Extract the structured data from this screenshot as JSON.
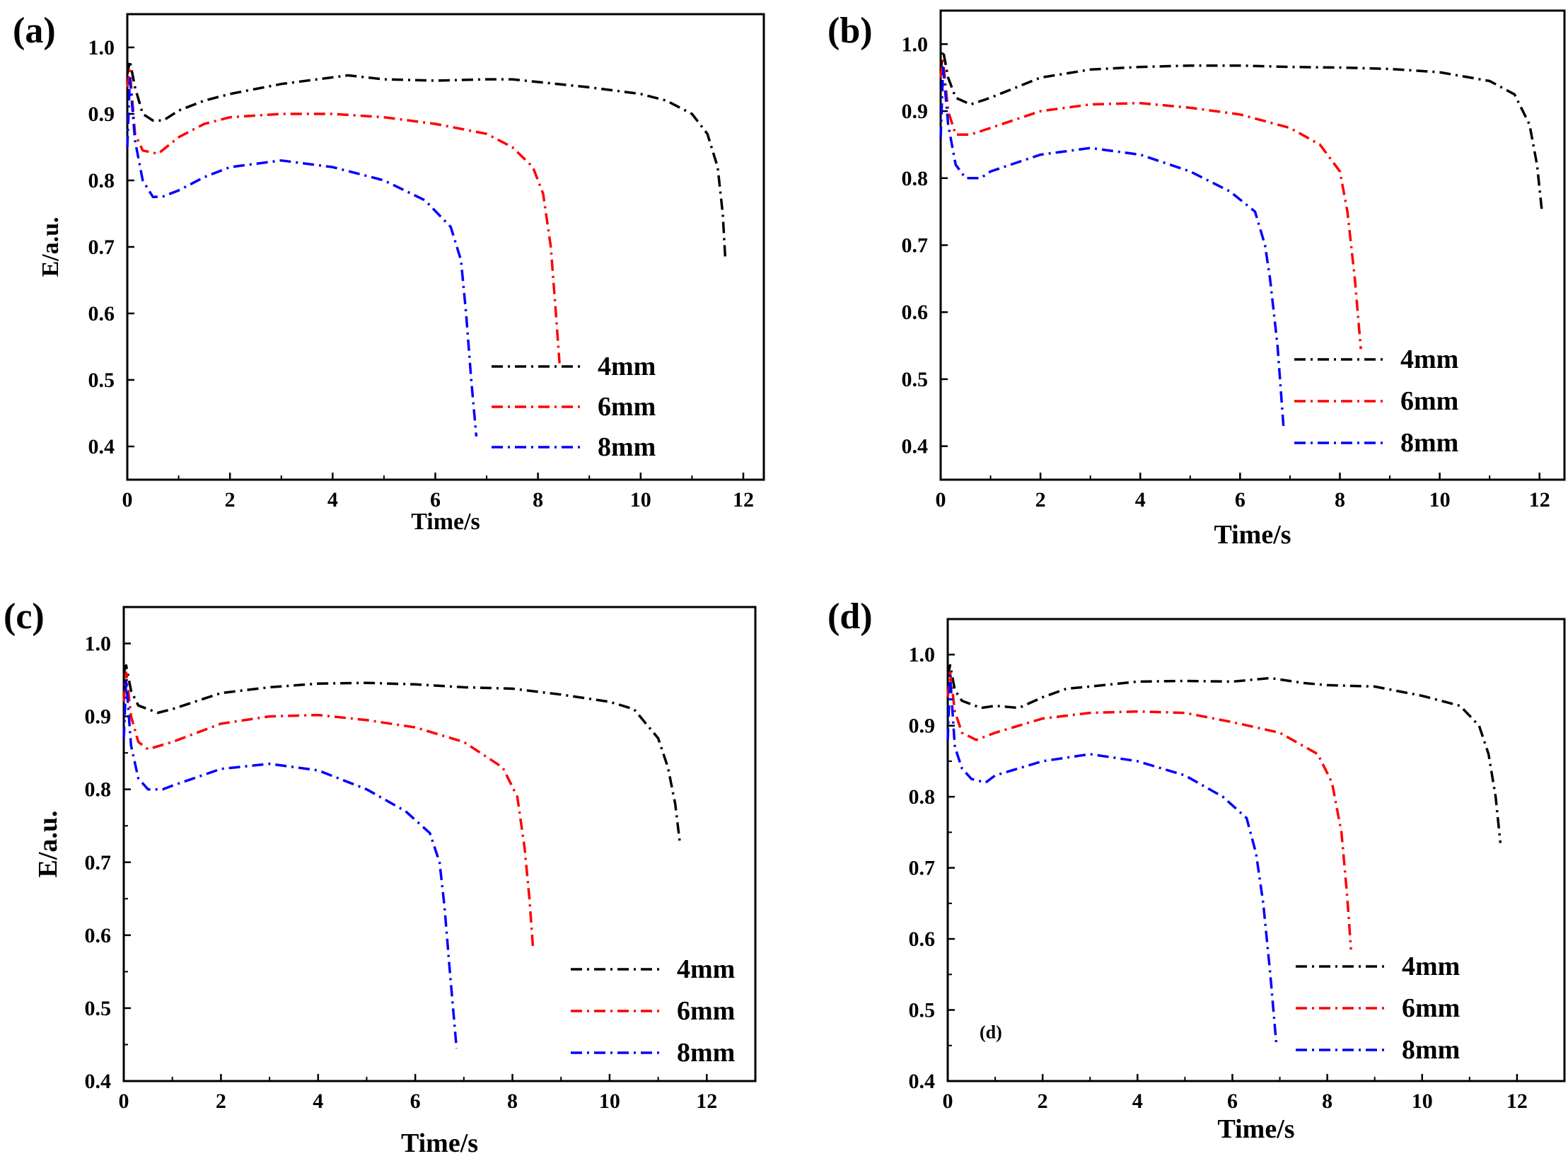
{
  "chart_data": [
    {
      "type": "line",
      "panel_label": "(a)",
      "xlabel": "Time/s",
      "ylabel": "E/a.u.",
      "xlim": [
        0,
        12.4
      ],
      "ylim": [
        0.35,
        1.05
      ],
      "x_ticks": [
        0,
        2,
        4,
        6,
        8,
        10,
        12
      ],
      "y_ticks": [
        0.4,
        0.5,
        0.6,
        0.7,
        0.8,
        0.9,
        1.0
      ],
      "x_tick_labels": [
        "0",
        "2",
        "4",
        "6",
        "8",
        "10",
        "12"
      ],
      "y_tick_labels": [
        "0.4",
        "0.5",
        "0.6",
        "0.7",
        "0.8",
        "0.9",
        "1.0"
      ],
      "legend_position": "lower-right",
      "series": [
        {
          "name": "4mm",
          "color": "#000000",
          "x": [
            0.0,
            0.05,
            0.15,
            0.3,
            0.5,
            0.7,
            1.0,
            1.5,
            2.0,
            3.0,
            4.0,
            4.3,
            5.0,
            6.0,
            7.0,
            7.5,
            8.0,
            9.0,
            10.0,
            10.5,
            11.0,
            11.3,
            11.5,
            11.6,
            11.65
          ],
          "y": [
            0.96,
            0.98,
            0.94,
            0.9,
            0.89,
            0.89,
            0.905,
            0.92,
            0.93,
            0.945,
            0.955,
            0.958,
            0.952,
            0.95,
            0.952,
            0.952,
            0.948,
            0.94,
            0.93,
            0.92,
            0.9,
            0.87,
            0.82,
            0.75,
            0.68
          ]
        },
        {
          "name": "6mm",
          "color": "#ff0000",
          "x": [
            0.0,
            0.05,
            0.15,
            0.3,
            0.6,
            1.0,
            1.5,
            2.0,
            3.0,
            4.0,
            5.0,
            6.0,
            7.0,
            7.5,
            7.9,
            8.1,
            8.25,
            8.35,
            8.42
          ],
          "y": [
            0.94,
            0.965,
            0.87,
            0.845,
            0.84,
            0.865,
            0.885,
            0.895,
            0.9,
            0.9,
            0.895,
            0.885,
            0.87,
            0.85,
            0.82,
            0.78,
            0.7,
            0.6,
            0.525
          ]
        },
        {
          "name": "8mm",
          "color": "#0000ff",
          "x": [
            0.0,
            0.05,
            0.15,
            0.3,
            0.5,
            0.7,
            1.0,
            1.5,
            2.0,
            3.0,
            4.0,
            5.0,
            5.8,
            6.3,
            6.5,
            6.6,
            6.7,
            6.8
          ],
          "y": [
            0.85,
            0.955,
            0.86,
            0.8,
            0.775,
            0.776,
            0.785,
            0.805,
            0.82,
            0.83,
            0.82,
            0.8,
            0.77,
            0.73,
            0.68,
            0.6,
            0.5,
            0.415
          ]
        }
      ]
    },
    {
      "type": "line",
      "panel_label": "(b)",
      "xlabel": "Time/s",
      "ylabel": "",
      "xlim": [
        0,
        12.5
      ],
      "ylim": [
        0.35,
        1.05
      ],
      "x_ticks": [
        0,
        2,
        4,
        6,
        8,
        10,
        12
      ],
      "y_ticks": [
        0.4,
        0.5,
        0.6,
        0.7,
        0.8,
        0.9,
        1.0
      ],
      "x_tick_labels": [
        "0",
        "2",
        "4",
        "6",
        "8",
        "10",
        "12"
      ],
      "y_tick_labels": [
        "0.4",
        "0.5",
        "0.6",
        "0.7",
        "0.8",
        "0.9",
        "1.0"
      ],
      "legend_position": "lower-right",
      "series": [
        {
          "name": "4mm",
          "color": "#000000",
          "x": [
            0.0,
            0.05,
            0.15,
            0.3,
            0.6,
            1.0,
            2.0,
            3.0,
            4.0,
            5.0,
            6.0,
            7.0,
            8.0,
            9.0,
            10.0,
            11.0,
            11.5,
            11.8,
            11.95,
            12.05
          ],
          "y": [
            0.96,
            0.99,
            0.95,
            0.92,
            0.91,
            0.92,
            0.95,
            0.962,
            0.966,
            0.968,
            0.968,
            0.966,
            0.965,
            0.963,
            0.958,
            0.945,
            0.925,
            0.88,
            0.82,
            0.75
          ]
        },
        {
          "name": "6mm",
          "color": "#ff0000",
          "x": [
            0.0,
            0.05,
            0.15,
            0.3,
            0.6,
            1.0,
            2.0,
            3.0,
            4.0,
            5.0,
            6.0,
            7.0,
            7.6,
            8.0,
            8.15,
            8.3,
            8.42
          ],
          "y": [
            0.95,
            0.975,
            0.9,
            0.865,
            0.865,
            0.875,
            0.9,
            0.91,
            0.912,
            0.905,
            0.895,
            0.875,
            0.85,
            0.81,
            0.75,
            0.65,
            0.545
          ]
        },
        {
          "name": "8mm",
          "color": "#0000ff",
          "x": [
            0.0,
            0.05,
            0.15,
            0.3,
            0.5,
            0.8,
            1.0,
            2.0,
            3.0,
            4.0,
            5.0,
            5.8,
            6.3,
            6.5,
            6.6,
            6.75,
            6.87
          ],
          "y": [
            0.86,
            0.965,
            0.88,
            0.82,
            0.8,
            0.8,
            0.81,
            0.835,
            0.845,
            0.835,
            0.81,
            0.78,
            0.75,
            0.7,
            0.65,
            0.55,
            0.43
          ]
        }
      ]
    },
    {
      "type": "line",
      "panel_label": "(c)",
      "xlabel": "Time/s",
      "ylabel": "E/a.u.",
      "xlim": [
        0,
        13
      ],
      "ylim": [
        0.4,
        1.05
      ],
      "x_ticks": [
        0,
        2,
        4,
        6,
        8,
        10,
        12
      ],
      "y_ticks": [
        0.4,
        0.5,
        0.6,
        0.7,
        0.8,
        0.9,
        1.0
      ],
      "x_tick_labels": [
        "0",
        "2",
        "4",
        "6",
        "8",
        "10",
        "12"
      ],
      "y_tick_labels": [
        "0.4",
        "0.5",
        "0.6",
        "0.7",
        "0.8",
        "0.9",
        "1.0"
      ],
      "legend_position": "lower-right",
      "series": [
        {
          "name": "4mm",
          "color": "#000000",
          "x": [
            0.0,
            0.05,
            0.15,
            0.3,
            0.7,
            1.0,
            2.0,
            3.0,
            4.0,
            5.0,
            6.0,
            7.0,
            8.0,
            9.0,
            10.0,
            10.5,
            11.0,
            11.2,
            11.35,
            11.45
          ],
          "y": [
            0.96,
            0.97,
            0.935,
            0.915,
            0.905,
            0.91,
            0.932,
            0.94,
            0.945,
            0.946,
            0.944,
            0.94,
            0.938,
            0.93,
            0.92,
            0.91,
            0.87,
            0.83,
            0.78,
            0.725
          ]
        },
        {
          "name": "6mm",
          "color": "#ff0000",
          "x": [
            0.0,
            0.05,
            0.15,
            0.3,
            0.5,
            1.0,
            2.0,
            3.0,
            4.0,
            5.0,
            6.0,
            7.0,
            7.8,
            8.1,
            8.25,
            8.35,
            8.42
          ],
          "y": [
            0.92,
            0.96,
            0.9,
            0.865,
            0.855,
            0.865,
            0.89,
            0.9,
            0.902,
            0.895,
            0.885,
            0.865,
            0.83,
            0.79,
            0.72,
            0.65,
            0.585
          ]
        },
        {
          "name": "8mm",
          "color": "#0000ff",
          "x": [
            0.0,
            0.05,
            0.15,
            0.3,
            0.5,
            0.8,
            1.0,
            2.0,
            3.0,
            4.0,
            5.0,
            5.8,
            6.3,
            6.5,
            6.6,
            6.7,
            6.85
          ],
          "y": [
            0.87,
            0.95,
            0.86,
            0.815,
            0.8,
            0.8,
            0.805,
            0.828,
            0.835,
            0.826,
            0.8,
            0.77,
            0.74,
            0.7,
            0.64,
            0.56,
            0.445
          ]
        }
      ]
    },
    {
      "type": "line",
      "panel_label": "(d)",
      "xlabel": "Time/s",
      "ylabel": "",
      "annotation": "(d)",
      "xlim": [
        0,
        13
      ],
      "ylim": [
        0.4,
        1.05
      ],
      "x_ticks": [
        0,
        2,
        4,
        6,
        8,
        10,
        12
      ],
      "y_ticks": [
        0.4,
        0.5,
        0.6,
        0.7,
        0.8,
        0.9,
        1.0
      ],
      "x_tick_labels": [
        "0",
        "2",
        "4",
        "6",
        "8",
        "10",
        "12"
      ],
      "y_tick_labels": [
        "0.4",
        "0.5",
        "0.6",
        "0.7",
        "0.8",
        "0.9",
        "1.0"
      ],
      "legend_position": "lower-right",
      "series": [
        {
          "name": "4mm",
          "color": "#000000",
          "x": [
            0.0,
            0.05,
            0.15,
            0.3,
            0.7,
            1.0,
            1.5,
            2.0,
            2.5,
            3.0,
            4.0,
            5.0,
            6.0,
            6.8,
            7.5,
            8.0,
            9.0,
            10.0,
            10.8,
            11.2,
            11.4,
            11.55,
            11.65
          ],
          "y": [
            0.97,
            0.985,
            0.95,
            0.935,
            0.925,
            0.928,
            0.925,
            0.94,
            0.952,
            0.955,
            0.962,
            0.963,
            0.962,
            0.967,
            0.96,
            0.957,
            0.955,
            0.942,
            0.928,
            0.9,
            0.86,
            0.8,
            0.735
          ]
        },
        {
          "name": "6mm",
          "color": "#ff0000",
          "x": [
            0.0,
            0.05,
            0.15,
            0.3,
            0.6,
            1.0,
            2.0,
            3.0,
            4.0,
            5.0,
            6.0,
            7.0,
            7.8,
            8.1,
            8.3,
            8.42,
            8.5
          ],
          "y": [
            0.94,
            0.975,
            0.92,
            0.89,
            0.88,
            0.89,
            0.91,
            0.918,
            0.92,
            0.918,
            0.905,
            0.89,
            0.86,
            0.82,
            0.75,
            0.66,
            0.585
          ]
        },
        {
          "name": "8mm",
          "color": "#0000ff",
          "x": [
            0.0,
            0.05,
            0.15,
            0.3,
            0.5,
            0.8,
            1.0,
            2.0,
            3.0,
            4.0,
            5.0,
            5.8,
            6.3,
            6.5,
            6.65,
            6.8,
            6.93
          ],
          "y": [
            0.88,
            0.97,
            0.87,
            0.84,
            0.825,
            0.82,
            0.83,
            0.85,
            0.86,
            0.85,
            0.83,
            0.8,
            0.77,
            0.72,
            0.65,
            0.55,
            0.45
          ]
        }
      ]
    }
  ]
}
